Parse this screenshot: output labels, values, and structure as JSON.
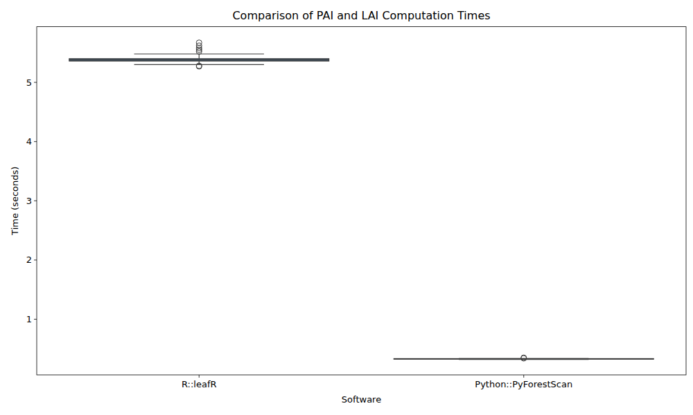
{
  "chart_data": {
    "type": "box",
    "title": "Comparison of PAI and LAI Computation Times",
    "x_label": "Software",
    "y_label": "Time (seconds)",
    "categories": [
      "R::leafR",
      "Python::PyForestScan"
    ],
    "stats": [
      {
        "min": 5.3,
        "q1": 5.36,
        "median": 5.38,
        "q3": 5.4,
        "max": 5.48,
        "outliers": [
          5.27,
          5.28,
          5.52,
          5.55,
          5.58,
          5.62,
          5.67
        ]
      },
      {
        "min": 0.32,
        "q1": 0.325,
        "median": 0.33,
        "q3": 0.335,
        "max": 0.335,
        "outliers": [
          0.34,
          0.35
        ]
      }
    ],
    "color": "#3d5a73",
    "ylim": [
      0.06,
      5.94
    ],
    "yticks": [
      1,
      2,
      3,
      4,
      5
    ],
    "grid": false
  }
}
